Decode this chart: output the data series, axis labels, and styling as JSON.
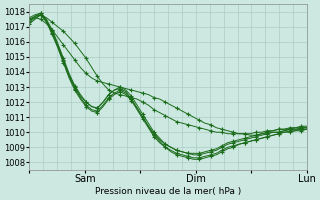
{
  "bg_color": "#cce8e0",
  "grid_color": "#aaccc4",
  "line_color": "#1a6b1a",
  "marker": "+",
  "xlabel": "Pression niveau de la mer( hPa )",
  "ylim": [
    1007.5,
    1018.5
  ],
  "yticks": [
    1008,
    1009,
    1010,
    1011,
    1012,
    1013,
    1014,
    1015,
    1016,
    1017,
    1018
  ],
  "xtick_labels": [
    "",
    "Sam",
    "",
    "Dim",
    "",
    "Lun"
  ],
  "xtick_positions": [
    0,
    24,
    48,
    72,
    96,
    120
  ],
  "x_total": 120,
  "series": [
    [
      1017.5,
      1017.6,
      1017.5,
      1017.2,
      1016.8,
      1016.3,
      1015.8,
      1015.3,
      1014.8,
      1014.3,
      1013.9,
      1013.6,
      1013.4,
      1013.3,
      1013.2,
      1013.1,
      1013.0,
      1012.9,
      1012.8,
      1012.7,
      1012.6,
      1012.5,
      1012.3,
      1012.2,
      1012.0,
      1011.8,
      1011.6,
      1011.4,
      1011.2,
      1011.0,
      1010.8,
      1010.6,
      1010.5,
      1010.3,
      1010.2,
      1010.1,
      1010.0,
      1009.9,
      1009.9,
      1009.8,
      1009.8,
      1009.9,
      1010.0,
      1010.1,
      1010.2,
      1010.2,
      1010.2,
      1010.2,
      1010.2,
      1010.2
    ],
    [
      1017.5,
      1017.7,
      1017.8,
      1017.4,
      1016.7,
      1015.8,
      1014.8,
      1013.8,
      1013.0,
      1012.4,
      1012.0,
      1011.7,
      1011.6,
      1012.0,
      1012.5,
      1012.8,
      1012.9,
      1012.7,
      1012.2,
      1011.6,
      1011.0,
      1010.4,
      1009.9,
      1009.5,
      1009.2,
      1009.0,
      1008.8,
      1008.7,
      1008.6,
      1008.6,
      1008.6,
      1008.7,
      1008.8,
      1008.9,
      1009.1,
      1009.3,
      1009.4,
      1009.5,
      1009.6,
      1009.7,
      1009.8,
      1009.9,
      1009.9,
      1010.0,
      1010.0,
      1010.1,
      1010.2,
      1010.3,
      1010.3,
      1010.3
    ],
    [
      1017.6,
      1017.8,
      1017.9,
      1017.5,
      1016.8,
      1015.9,
      1014.9,
      1013.9,
      1013.1,
      1012.5,
      1012.0,
      1011.7,
      1011.6,
      1012.0,
      1012.5,
      1012.8,
      1013.0,
      1012.8,
      1012.4,
      1011.8,
      1011.2,
      1010.6,
      1010.0,
      1009.6,
      1009.2,
      1009.0,
      1008.8,
      1008.7,
      1008.6,
      1008.5,
      1008.5,
      1008.6,
      1008.7,
      1008.8,
      1009.0,
      1009.2,
      1009.3,
      1009.4,
      1009.5,
      1009.6,
      1009.7,
      1009.8,
      1009.9,
      1010.0,
      1010.0,
      1010.1,
      1010.2,
      1010.2,
      1010.3,
      1010.3
    ],
    [
      1017.4,
      1017.7,
      1017.9,
      1017.4,
      1016.6,
      1015.7,
      1014.7,
      1013.7,
      1012.9,
      1012.3,
      1011.8,
      1011.5,
      1011.4,
      1011.8,
      1012.3,
      1012.6,
      1012.8,
      1012.6,
      1012.2,
      1011.6,
      1011.0,
      1010.4,
      1009.8,
      1009.4,
      1009.0,
      1008.8,
      1008.6,
      1008.5,
      1008.4,
      1008.3,
      1008.3,
      1008.4,
      1008.5,
      1008.6,
      1008.8,
      1009.0,
      1009.1,
      1009.2,
      1009.3,
      1009.4,
      1009.5,
      1009.6,
      1009.7,
      1009.8,
      1009.9,
      1010.0,
      1010.1,
      1010.1,
      1010.2,
      1010.2
    ],
    [
      1017.3,
      1017.6,
      1017.8,
      1017.3,
      1016.5,
      1015.6,
      1014.6,
      1013.6,
      1012.8,
      1012.2,
      1011.7,
      1011.4,
      1011.3,
      1011.7,
      1012.2,
      1012.5,
      1012.7,
      1012.5,
      1012.1,
      1011.5,
      1010.9,
      1010.3,
      1009.7,
      1009.3,
      1009.0,
      1008.7,
      1008.5,
      1008.4,
      1008.3,
      1008.2,
      1008.2,
      1008.3,
      1008.4,
      1008.5,
      1008.7,
      1008.9,
      1009.0,
      1009.2,
      1009.3,
      1009.4,
      1009.5,
      1009.6,
      1009.7,
      1009.8,
      1009.9,
      1010.0,
      1010.0,
      1010.1,
      1010.1,
      1010.2
    ],
    [
      1017.2,
      1017.5,
      1017.8,
      1017.6,
      1017.3,
      1017.0,
      1016.7,
      1016.3,
      1015.9,
      1015.4,
      1014.9,
      1014.3,
      1013.7,
      1013.2,
      1012.8,
      1012.6,
      1012.5,
      1012.4,
      1012.3,
      1012.2,
      1012.0,
      1011.8,
      1011.5,
      1011.3,
      1011.1,
      1010.9,
      1010.7,
      1010.6,
      1010.5,
      1010.4,
      1010.3,
      1010.2,
      1010.1,
      1010.0,
      1010.0,
      1009.9,
      1009.9,
      1009.9,
      1009.9,
      1009.9,
      1010.0,
      1010.0,
      1010.1,
      1010.1,
      1010.2,
      1010.2,
      1010.3,
      1010.3,
      1010.4,
      1010.4
    ]
  ]
}
